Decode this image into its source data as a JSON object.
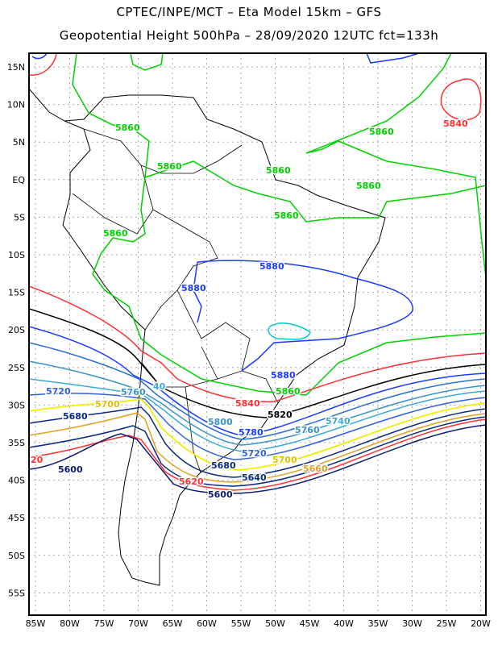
{
  "header": {
    "title_line1": "CPTEC/INPE/MCT –  Eta Model 15km – GFS",
    "title_line2": "Geopotential Height 500hPa – 28/09/2020 12UTC fct=133h"
  },
  "axes": {
    "lon_labels": [
      "85W",
      "80W",
      "75W",
      "70W",
      "65W",
      "60W",
      "55W",
      "50W",
      "45W",
      "40W",
      "35W",
      "30W",
      "25W",
      "20W"
    ],
    "lat_labels": [
      "15N",
      "10N",
      "5N",
      "EQ",
      "5S",
      "10S",
      "15S",
      "20S",
      "25S",
      "30S",
      "35S",
      "40S",
      "45S",
      "50S",
      "55S"
    ]
  },
  "contour_labels": {
    "l5860_a": "5860",
    "l5860_b": "5860",
    "l5860_c": "5860",
    "l5860_d": "5860",
    "l5860_e": "5860",
    "l5860_f": "5860",
    "l5860_g": "5860",
    "l5860_h": "5860",
    "l5840_ne": "5840",
    "l5840": "5840",
    "l5880_a": "5880",
    "l5880_b": "5880",
    "l5880_c": "5880",
    "l5820": "5820",
    "l5800": "5800",
    "l5780": "5780",
    "l5760_a": "5760",
    "l5760_b": "5760",
    "l5740_a": "40",
    "l5740_b": "5740",
    "l5720_a": "5720",
    "l5720_b": "5720",
    "l5700_a": "5700",
    "l5700_b": "5700",
    "l5680_a": "5680",
    "l5680_b": "5680",
    "l5660": "5660",
    "l5640": "5640",
    "l5620_a": "20",
    "l5620_b": "5620",
    "l5600_a": "5600",
    "l5600_b": "5600"
  },
  "colors": {
    "c5880": "#1a3cff",
    "c5860": "#00d000",
    "c5840": "#ff3030",
    "c5820": "#000000",
    "c5800": "#1a3cff",
    "c5780": "#2a6fd0",
    "c5760": "#3a92c8",
    "c5740": "#3ea8d8",
    "c5720": "#3060e0",
    "c5700": "#f0f000",
    "c5680": "#0a2a80",
    "c5660": "#e0a020",
    "c5620": "#ff3030",
    "c5600": "#0a1a70",
    "c5900": "#00c8d0"
  }
}
